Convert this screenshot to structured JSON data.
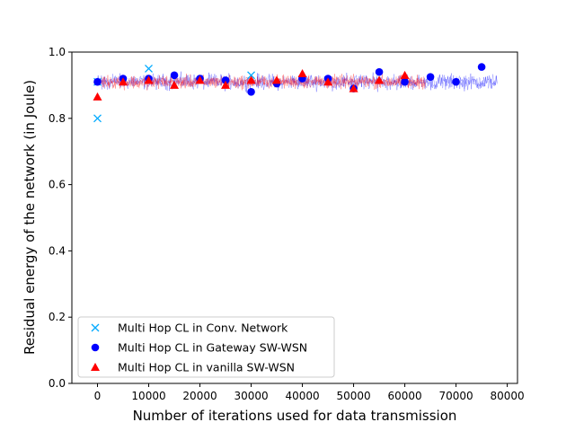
{
  "chart_data": {
    "type": "scatter",
    "xlabel": "Number of iterations used for data transmission",
    "ylabel": "Residual energy of the network (in Joule)",
    "xlim": [
      -5000,
      82000
    ],
    "ylim": [
      0.0,
      1.0
    ],
    "x_ticks": [
      0,
      10000,
      20000,
      30000,
      40000,
      50000,
      60000,
      70000,
      80000
    ],
    "x_tick_labels": [
      "0",
      "10000",
      "20000",
      "30000",
      "40000",
      "50000",
      "60000",
      "70000",
      "80000"
    ],
    "y_ticks": [
      0.0,
      0.2,
      0.4,
      0.6,
      0.8,
      1.0
    ],
    "y_tick_labels": [
      "0.0",
      "0.2",
      "0.4",
      "0.6",
      "0.8",
      "1.0"
    ],
    "grid": false,
    "legend_position": "lower-left",
    "series": [
      {
        "name": "Multi Hop CL in Conv. Network",
        "marker": "x",
        "color": "#00aaff",
        "x": [
          0,
          0,
          10000,
          30000
        ],
        "y": [
          0.8,
          0.91,
          0.95,
          0.93
        ]
      },
      {
        "name": "Multi Hop CL in Gateway SW-WSN",
        "marker": "circle",
        "color": "#0000ff",
        "x": [
          0,
          5000,
          10000,
          15000,
          20000,
          25000,
          30000,
          35000,
          40000,
          45000,
          50000,
          55000,
          60000,
          65000,
          70000,
          75000
        ],
        "y": [
          0.91,
          0.92,
          0.92,
          0.93,
          0.92,
          0.915,
          0.88,
          0.905,
          0.92,
          0.92,
          0.89,
          0.94,
          0.91,
          0.925,
          0.91,
          0.955
        ]
      },
      {
        "name": "Multi Hop CL in vanilla SW-WSN",
        "marker": "triangle",
        "color": "#ff0000",
        "x": [
          0,
          5000,
          10000,
          15000,
          20000,
          25000,
          30000,
          35000,
          40000,
          45000,
          50000,
          55000,
          60000
        ],
        "y": [
          0.865,
          0.91,
          0.915,
          0.9,
          0.915,
          0.9,
          0.915,
          0.915,
          0.935,
          0.91,
          0.89,
          0.915,
          0.93
        ]
      }
    ],
    "noise_bands": [
      {
        "color": "#0000ff",
        "x_start": 0,
        "x_end": 78000,
        "center": 0.91,
        "spread": 0.035
      },
      {
        "color": "#ff0000",
        "x_start": 0,
        "x_end": 64000,
        "center": 0.91,
        "spread": 0.03
      }
    ]
  }
}
